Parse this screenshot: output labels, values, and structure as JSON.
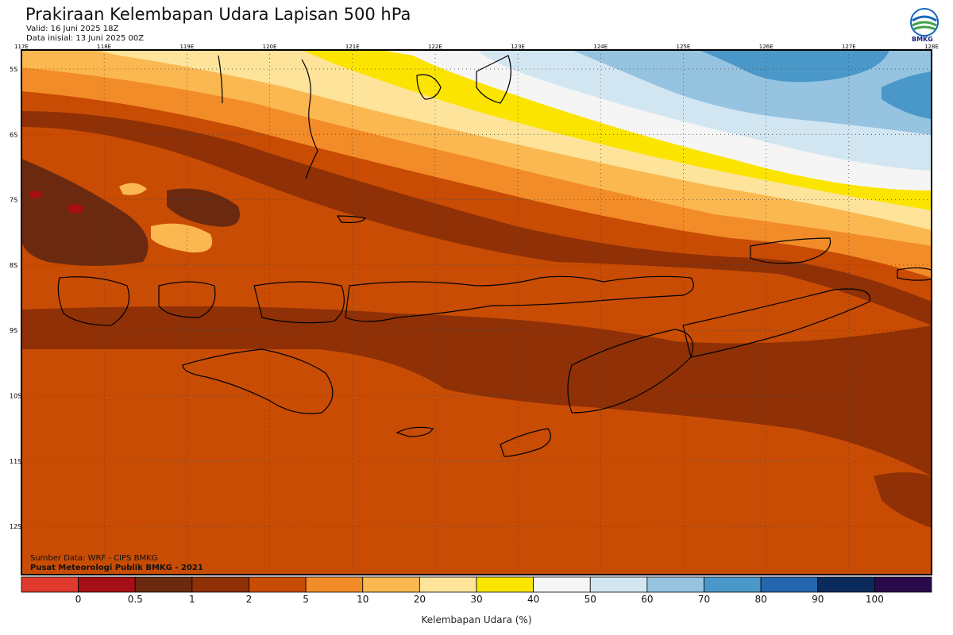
{
  "header": {
    "title": "Prakiraan Kelembapan Udara Lapisan 500 hPa",
    "valid": "Valid: 16 Juni 2025 18Z",
    "init": "Data inisial: 13 Juni 2025 00Z",
    "logo_text": "BMKG"
  },
  "map": {
    "lon_labels": [
      "117E",
      "118E",
      "119E",
      "120E",
      "121E",
      "122E",
      "123E",
      "124E",
      "125E",
      "126E",
      "127E",
      "128E"
    ],
    "lat_labels": [
      "5S",
      "6S",
      "7S",
      "8S",
      "9S",
      "10S",
      "11S",
      "12S"
    ],
    "source_line1": "Sumber Data: WRF - CIPS BMKG",
    "source_line2": "Pusat Meteorologi Publik BMKG - 2021"
  },
  "legend": {
    "title": "Kelembapan Udara (%)",
    "labels": [
      "0",
      "0.5",
      "1",
      "2",
      "5",
      "10",
      "20",
      "30",
      "40",
      "50",
      "60",
      "70",
      "80",
      "90",
      "100"
    ],
    "colors": [
      "#e03a2e",
      "#a50f15",
      "#6b2a10",
      "#8f3006",
      "#c84c04",
      "#f28c28",
      "#fbb850",
      "#fde49a",
      "#fbe400",
      "#f5f5f5",
      "#d2e6f2",
      "#95c3e0",
      "#4a98c9",
      "#2366af",
      "#0b2a5c",
      "#2a0a4a"
    ]
  }
}
